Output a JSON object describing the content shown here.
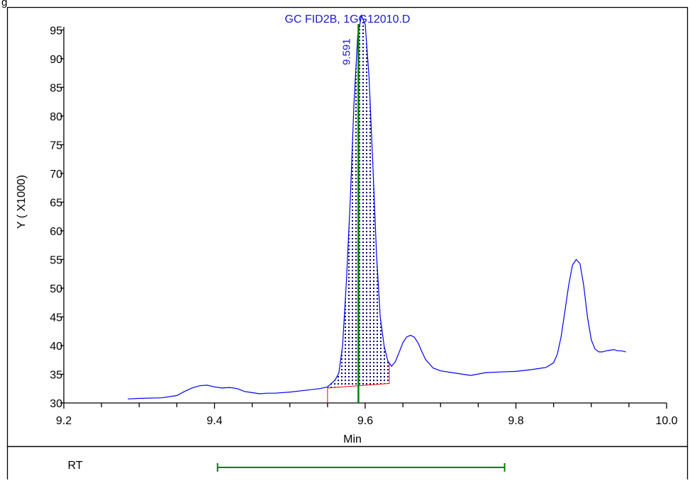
{
  "top_left_fragment": "g",
  "chart_data": {
    "type": "line",
    "title": "GC FID2B, 1GG12010.D",
    "xlabel": "Min",
    "ylabel": "Y ( X1000)",
    "xlim": [
      9.2,
      10.0
    ],
    "ylim": [
      30,
      98
    ],
    "x_ticks": [
      9.2,
      9.4,
      9.6,
      9.8,
      10.0
    ],
    "x_tick_labels": [
      "9.2",
      "9.4",
      "9.6",
      "9.8",
      "10.0"
    ],
    "y_ticks": [
      30,
      35,
      40,
      45,
      50,
      55,
      60,
      65,
      70,
      75,
      80,
      85,
      90,
      95
    ],
    "y_tick_labels": [
      "30",
      "35",
      "40",
      "45",
      "50",
      "55",
      "60",
      "65",
      "70",
      "75",
      "80",
      "85",
      "90",
      "95"
    ],
    "grid": false,
    "series": [
      {
        "color": "#0000ff",
        "x": [
          9.285,
          9.3,
          9.33,
          9.35,
          9.36,
          9.37,
          9.38,
          9.39,
          9.4,
          9.41,
          9.42,
          9.43,
          9.44,
          9.45,
          9.46,
          9.47,
          9.48,
          9.5,
          9.52,
          9.54,
          9.55,
          9.56,
          9.565,
          9.57,
          9.575,
          9.58,
          9.585,
          9.59,
          9.595,
          9.6,
          9.605,
          9.61,
          9.615,
          9.62,
          9.625,
          9.63,
          9.635,
          9.64,
          9.645,
          9.65,
          9.655,
          9.66,
          9.665,
          9.67,
          9.675,
          9.68,
          9.69,
          9.7,
          9.72,
          9.74,
          9.76,
          9.78,
          9.8,
          9.82,
          9.84,
          9.85,
          9.855,
          9.86,
          9.865,
          9.87,
          9.875,
          9.88,
          9.885,
          9.89,
          9.895,
          9.9,
          9.905,
          9.91,
          9.915,
          9.92,
          9.925,
          9.93,
          9.935,
          9.94,
          9.946
        ],
        "y": [
          30.7,
          30.8,
          30.9,
          31.3,
          32.0,
          32.6,
          33.0,
          33.1,
          32.8,
          32.6,
          32.7,
          32.5,
          32.0,
          31.8,
          31.6,
          31.7,
          31.7,
          31.9,
          32.2,
          32.5,
          32.8,
          34.0,
          35.2,
          40.0,
          51.0,
          65.0,
          82.0,
          94.0,
          97.5,
          96.0,
          87.0,
          72.0,
          56.0,
          45.0,
          40.0,
          37.3,
          36.4,
          37.2,
          38.8,
          40.5,
          41.5,
          41.8,
          41.5,
          40.5,
          39.0,
          37.6,
          36.1,
          35.6,
          35.2,
          34.8,
          35.3,
          35.4,
          35.5,
          35.8,
          36.2,
          37.0,
          38.5,
          41.5,
          46.0,
          50.5,
          54.0,
          55.0,
          54.3,
          50.5,
          45.0,
          41.0,
          39.4,
          38.9,
          38.9,
          39.1,
          39.2,
          39.3,
          39.1,
          39.1,
          38.9
        ]
      }
    ],
    "peak": {
      "label": "9.591",
      "x": 9.591,
      "start_x": 9.55,
      "end_x": 9.632,
      "baseline_start_y": 32.6,
      "baseline_end_y": 33.4,
      "baseline_color": "#ff0000",
      "fill_pattern": "dots",
      "rt_line_color": "#008000"
    },
    "rt_bar": {
      "label": "RT",
      "start_x": 9.404,
      "end_x": 9.785,
      "color": "#008000"
    }
  }
}
